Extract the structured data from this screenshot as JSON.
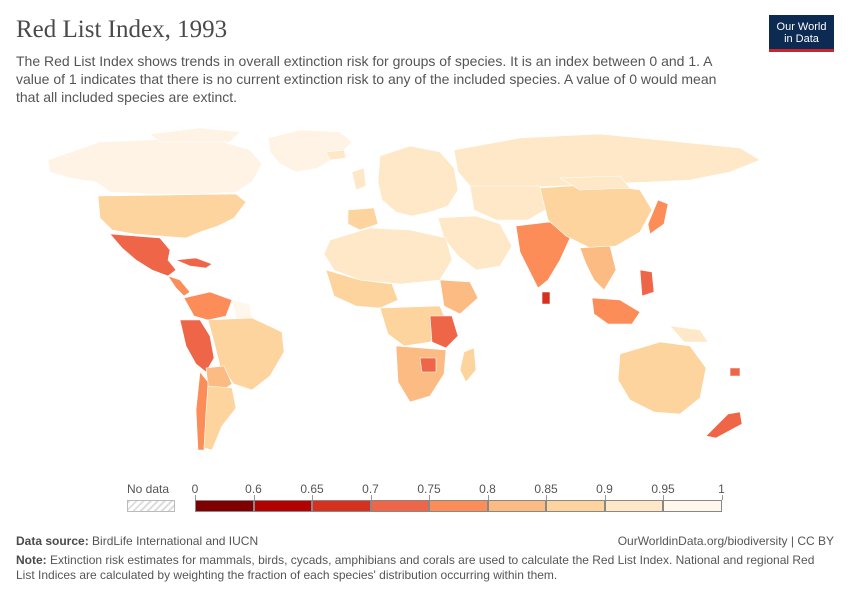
{
  "header": {
    "title": "Red List Index, 1993",
    "subtitle": "The Red List Index shows trends in overall extinction risk for groups of species. It is an index between 0 and 1. A value of 1 indicates that there is no current extinction risk to any of the included species. A value of 0 would mean that all included species are extinct."
  },
  "logo": {
    "line1": "Our World",
    "line2": "in Data"
  },
  "legend": {
    "nodata_label": "No data",
    "ticks": [
      "0",
      "0.6",
      "0.65",
      "0.7",
      "0.75",
      "0.8",
      "0.85",
      "0.9",
      "0.95",
      "1"
    ],
    "colors": [
      "#7f0000",
      "#b30000",
      "#d7301f",
      "#ef6548",
      "#fc8d59",
      "#fdbb84",
      "#fdd49e",
      "#fee8c8",
      "#fff7ec"
    ]
  },
  "footer": {
    "source_label": "Data source:",
    "source_text": "BirdLife International and IUCN",
    "url": "OurWorldinData.org/biodiversity | CC BY",
    "note_label": "Note:",
    "note_text": "Extinction risk estimates for mammals, birds, cycads, amphibians and corals are used to calculate the Red List Index. National and regional Red List Indices are calculated by weighting the fraction of each species' distribution occurring within them."
  }
}
